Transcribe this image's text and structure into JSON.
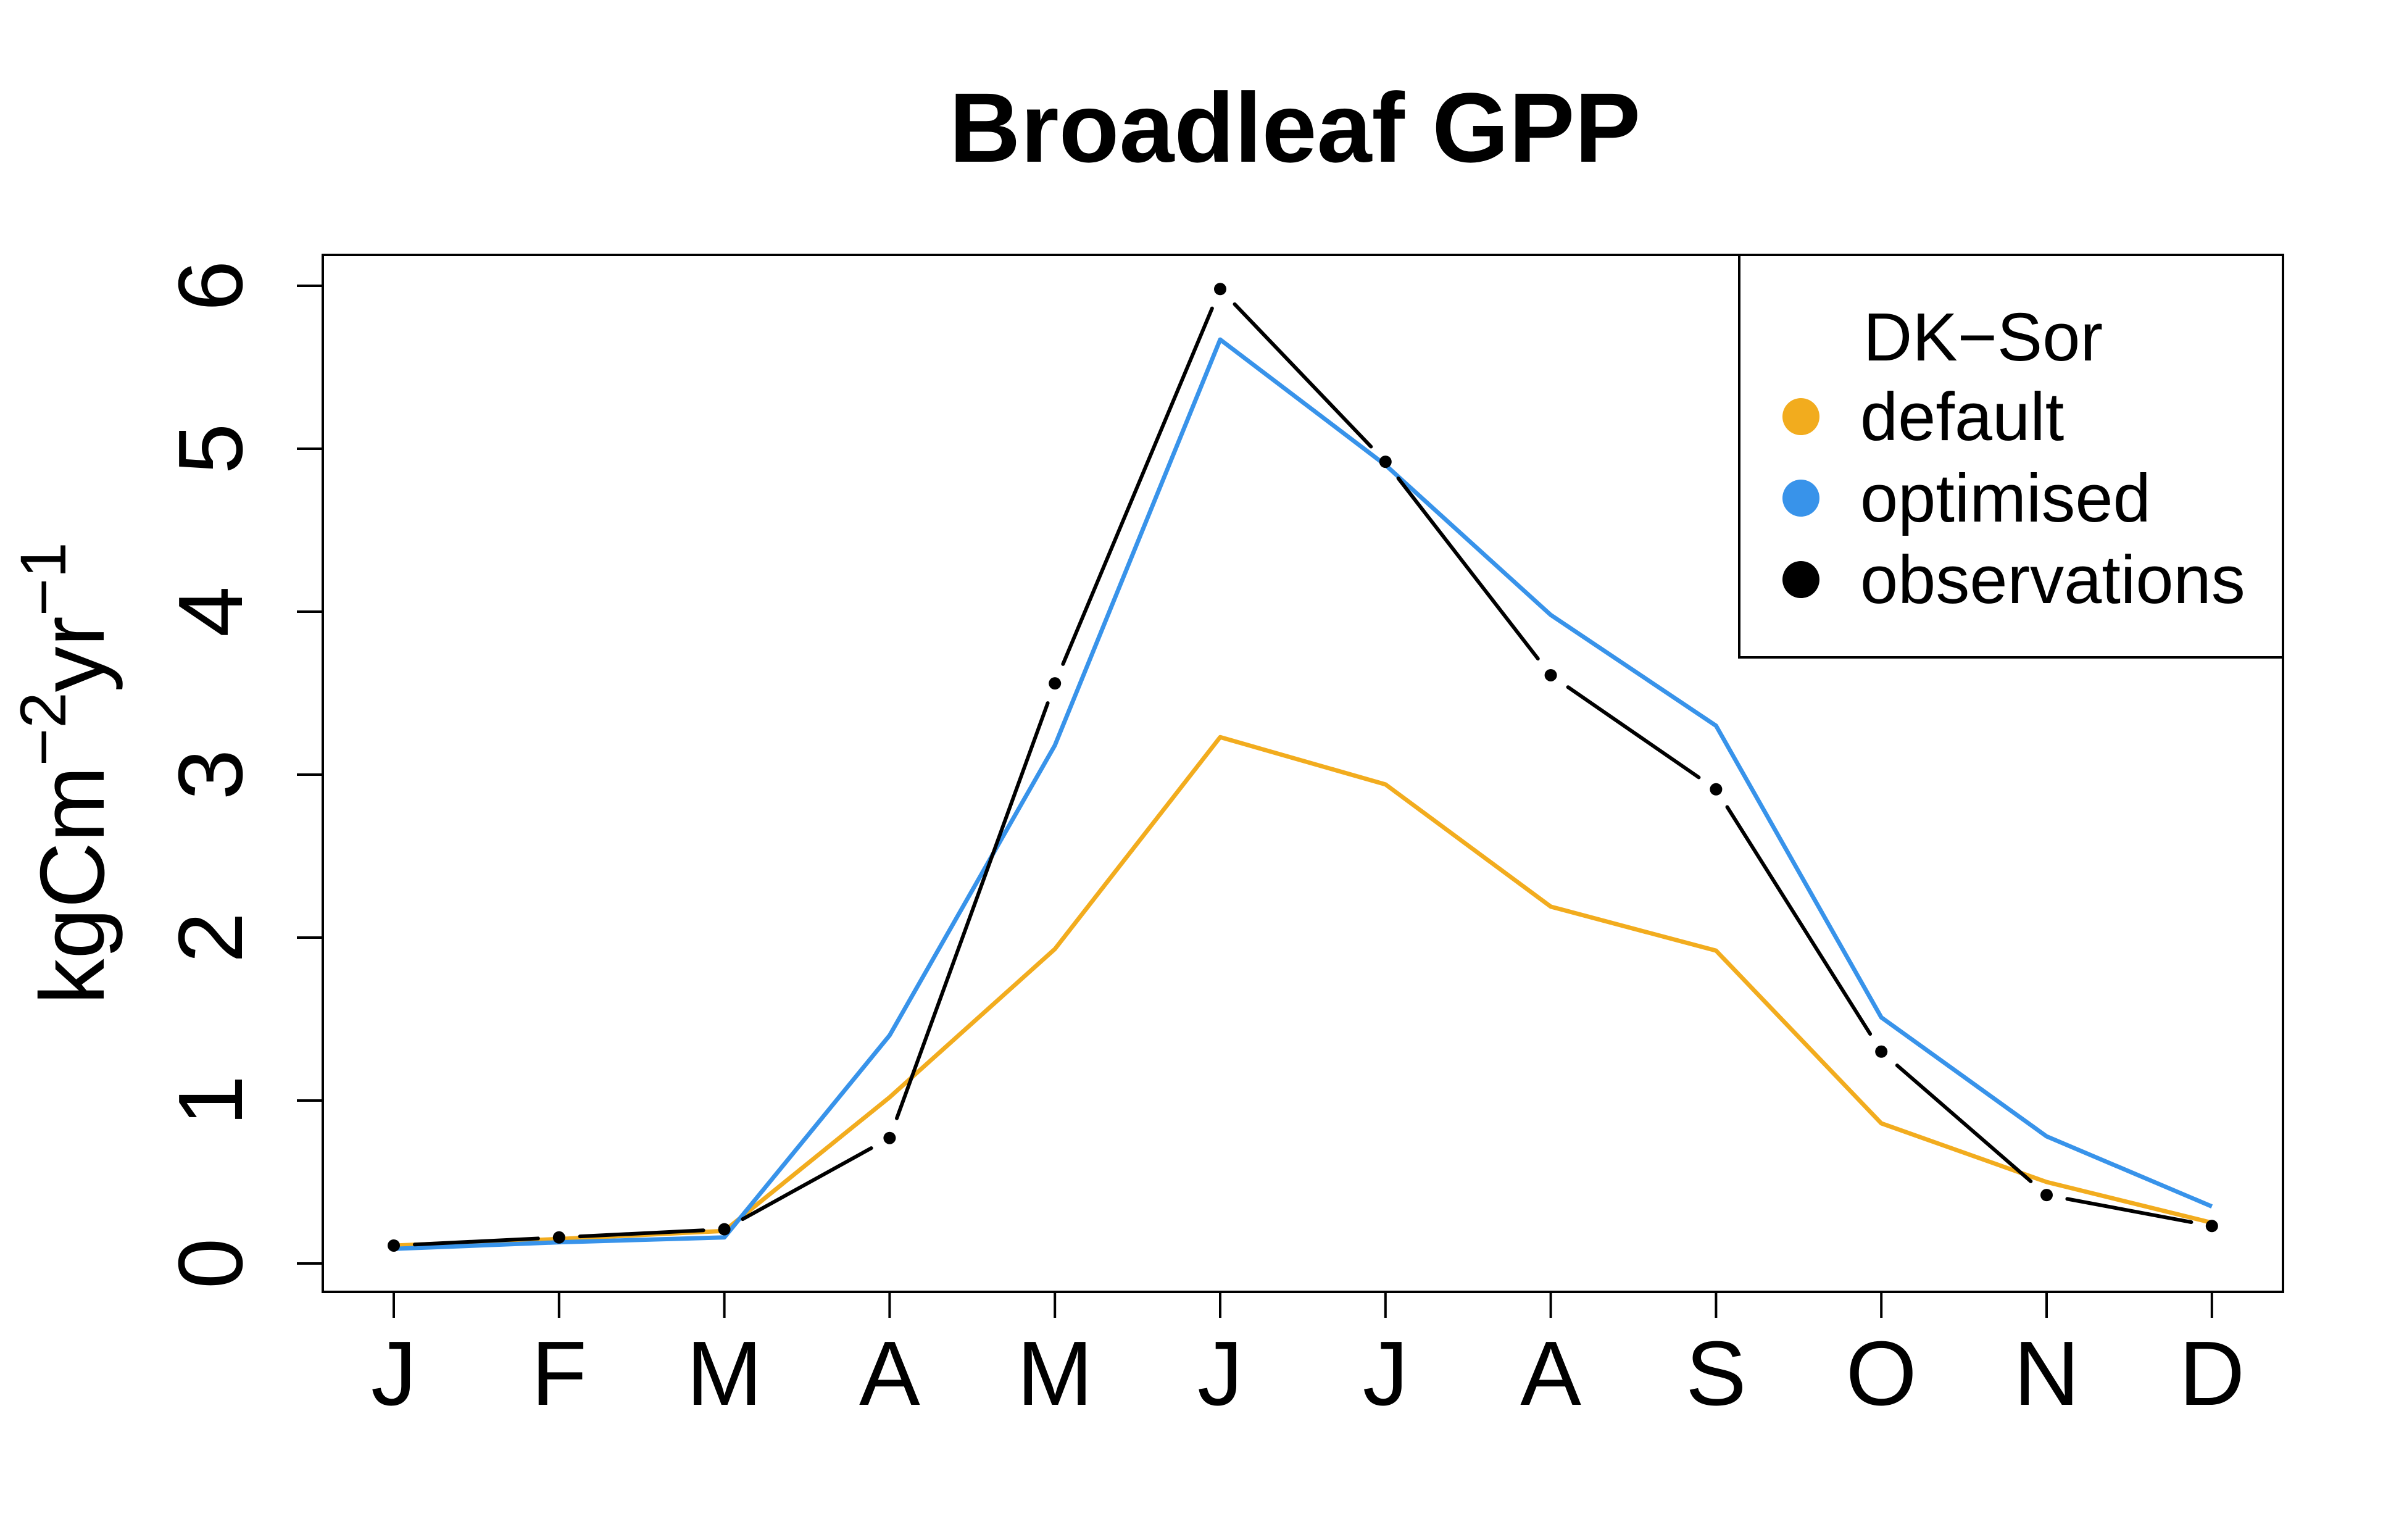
{
  "chart_data": {
    "type": "line",
    "title": "Broadleaf GPP",
    "xlabel": "",
    "ylabel": {
      "base": "kgCm",
      "sup1": "−2",
      "mid": "yr",
      "sup2": "−1"
    },
    "categories": [
      "J",
      "F",
      "M",
      "A",
      "M",
      "J",
      "J",
      "A",
      "S",
      "O",
      "N",
      "D"
    ],
    "yticks": [
      "0",
      "1",
      "2",
      "3",
      "4",
      "5",
      "6"
    ],
    "ylim": [
      -0.15,
      6.25
    ],
    "grid": false,
    "legend": {
      "title": "DK−Sor",
      "position": "top-right",
      "entries": [
        "default",
        "optimised",
        "observations"
      ]
    },
    "series": [
      {
        "name": "default",
        "color": "#F2AC1E",
        "style": "solid",
        "values": [
          0.11,
          0.15,
          0.2,
          1.02,
          1.93,
          3.23,
          2.94,
          2.19,
          1.92,
          0.86,
          0.5,
          0.25
        ]
      },
      {
        "name": "optimised",
        "color": "#3893EA",
        "style": "solid",
        "values": [
          0.09,
          0.13,
          0.16,
          1.4,
          3.18,
          5.67,
          4.9,
          3.98,
          3.3,
          1.51,
          0.78,
          0.35
        ]
      },
      {
        "name": "observations",
        "color": "#000000",
        "style": "broken",
        "values": [
          0.11,
          0.16,
          0.21,
          0.77,
          3.56,
          5.98,
          4.92,
          3.61,
          2.91,
          1.3,
          0.42,
          0.23
        ]
      }
    ]
  }
}
